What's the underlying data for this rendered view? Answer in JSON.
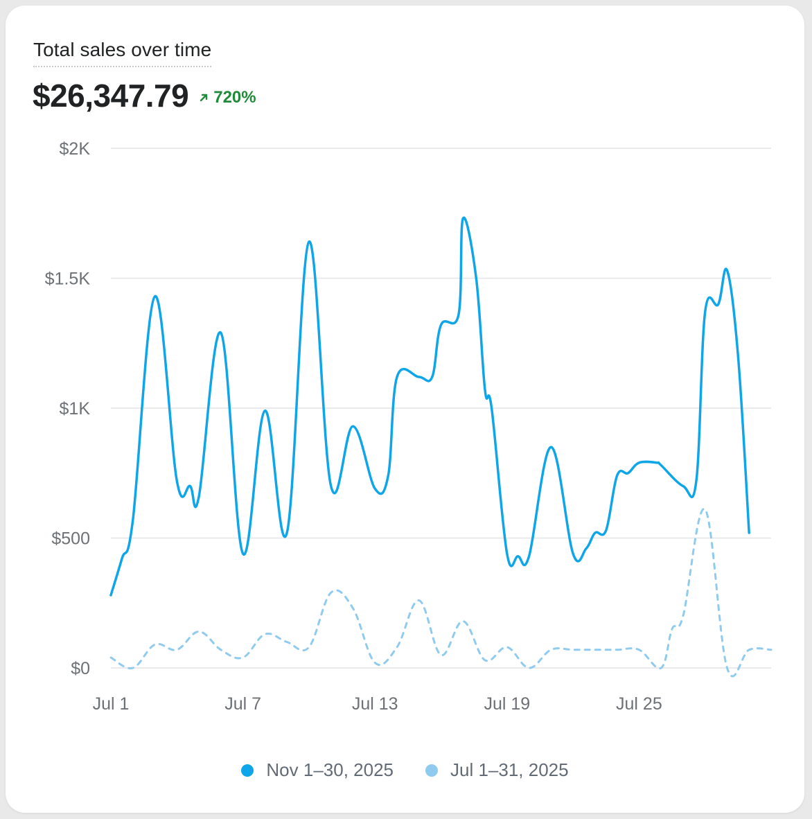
{
  "card": {
    "title": "Total sales over time",
    "value": "$26,347.79",
    "change": "720%",
    "change_icon": "arrow-up-right-icon",
    "change_color": "#1f8a3a"
  },
  "legend": [
    {
      "label": "Nov 1–30, 2025",
      "color": "#0ea5e9"
    },
    {
      "label": "Jul 1–31, 2025",
      "color": "#8fcbef"
    }
  ],
  "chart_data": {
    "type": "line",
    "title": "Total sales over time",
    "xlabel": "",
    "ylabel": "",
    "x_ticks": [
      "Jul 1",
      "Jul 7",
      "Jul 13",
      "Jul 19",
      "Jul 25"
    ],
    "y_ticks": [
      "$0",
      "$500",
      "$1K",
      "$1.5K",
      "$2K"
    ],
    "ylim": [
      0,
      2000
    ],
    "grid": true,
    "legend_position": "bottom",
    "series": [
      {
        "name": "Nov 1–30, 2025",
        "color": "#0ea5e9",
        "style": "solid",
        "x": [
          1,
          1.5,
          2,
          3,
          4,
          4.6,
          5,
          6,
          7,
          8,
          9,
          10,
          11,
          12,
          13,
          13.6,
          14,
          15,
          15.6,
          16,
          16.8,
          17,
          17.6,
          18,
          18.3,
          19,
          19.5,
          20,
          21,
          22,
          22.6,
          23,
          23.5,
          24,
          24.5,
          25,
          25.8,
          26,
          27,
          27.6,
          28,
          28.6,
          29,
          29.5,
          30
        ],
        "values": [
          280,
          420,
          570,
          1430,
          720,
          700,
          660,
          1290,
          440,
          990,
          520,
          1640,
          700,
          930,
          690,
          740,
          1120,
          1120,
          1120,
          1320,
          1360,
          1730,
          1500,
          1070,
          1000,
          440,
          430,
          430,
          850,
          440,
          460,
          520,
          530,
          740,
          750,
          790,
          790,
          780,
          700,
          720,
          1370,
          1400,
          1530,
          1200,
          520
        ]
      },
      {
        "name": "Jul 1–31, 2025",
        "color": "#8fcbef",
        "style": "dashed",
        "x": [
          1,
          2,
          3,
          4,
          5,
          6,
          7,
          8,
          9,
          10,
          11,
          12,
          13,
          14,
          15,
          16,
          17,
          18,
          19,
          20,
          21,
          22,
          23,
          24,
          25,
          26,
          26.5,
          27,
          28,
          29,
          30,
          31
        ],
        "values": [
          40,
          0,
          90,
          70,
          140,
          70,
          40,
          130,
          100,
          80,
          290,
          230,
          20,
          80,
          260,
          50,
          180,
          30,
          80,
          0,
          70,
          70,
          70,
          70,
          70,
          0,
          150,
          200,
          610,
          0,
          70,
          70
        ]
      }
    ]
  }
}
